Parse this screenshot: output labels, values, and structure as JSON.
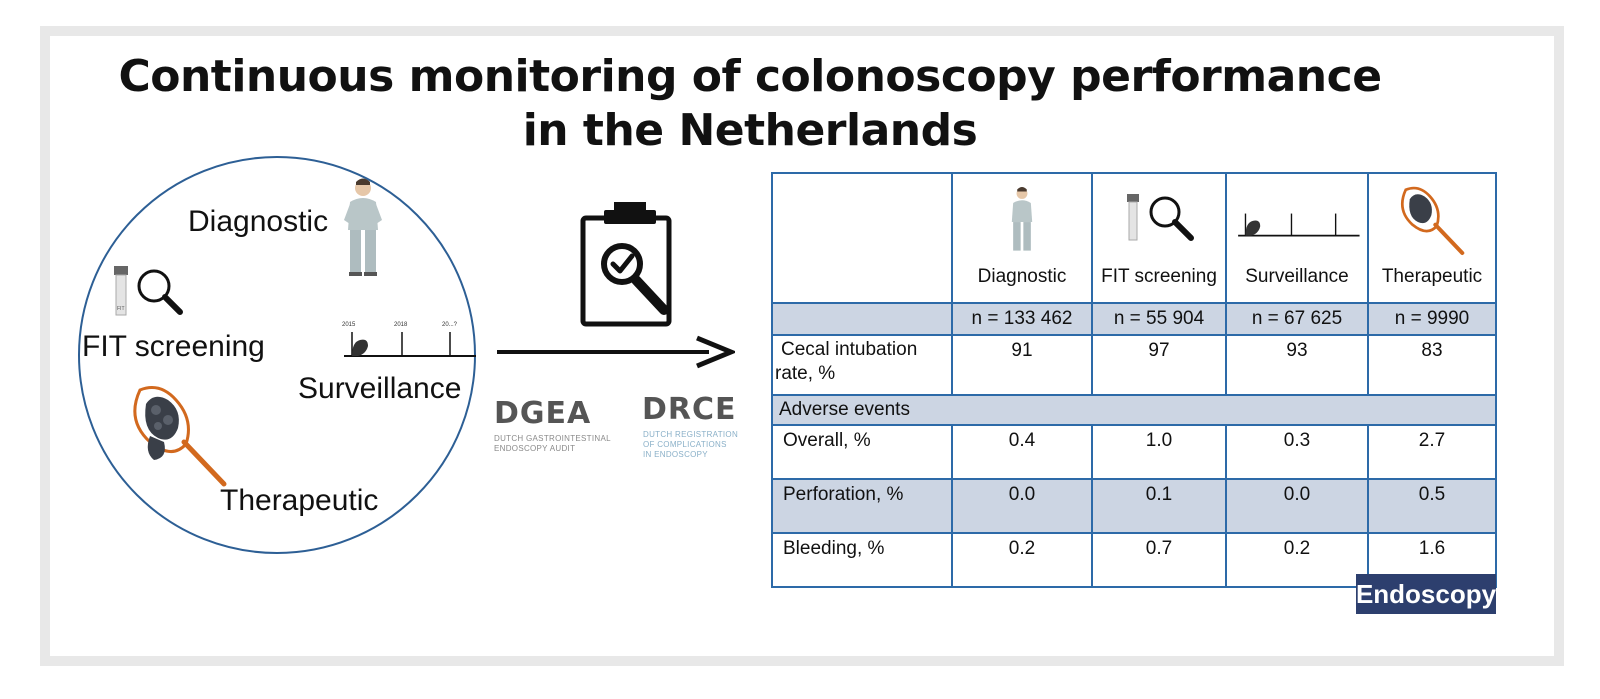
{
  "title": "Continuous monitoring of colonoscopy performance in the Netherlands",
  "circle": {
    "labels": {
      "diagnostic": "Diagnostic",
      "fit": "FIT screening",
      "surveillance": "Surveillance",
      "therapeutic": "Therapeutic"
    },
    "timeline_ticks": [
      "2015",
      "2018",
      "20...?"
    ],
    "fit_tube_label": "FIT"
  },
  "registries": {
    "dgea": {
      "name": "DGEA",
      "subtitle_lines": [
        "DUTCH GASTROINTESTINAL",
        "ENDOSCOPY AUDIT"
      ]
    },
    "drce": {
      "name": "DRCE",
      "subtitle_lines": [
        "DUTCH REGISTRATION",
        "OF COMPLICATIONS",
        "IN ENDOSCOPY"
      ]
    }
  },
  "table": {
    "columns": [
      "Diagnostic",
      "FIT screening",
      "Surveillance",
      "Therapeutic"
    ],
    "n_values": [
      "n = 133 462",
      "n = 55 904",
      "n = 67 625",
      "n = 9990"
    ],
    "cecal": {
      "label_line1": "Cecal intubation",
      "label_line2": "rate, %",
      "values": [
        "91",
        "97",
        "93",
        "83"
      ]
    },
    "section_label": "Adverse events",
    "overall": {
      "label": "Overall, %",
      "values": [
        "0.4",
        "1.0",
        "0.3",
        "2.7"
      ]
    },
    "perforation": {
      "label": "Perforation, %",
      "values": [
        "0.0",
        "0.1",
        "0.0",
        "0.5"
      ]
    },
    "bleeding": {
      "label": "Bleeding, %",
      "values": [
        "0.2",
        "0.7",
        "0.2",
        "1.6"
      ]
    }
  },
  "brand": "Endoscopy",
  "colors": {
    "circle_border": "#2d5f95",
    "table_border": "#2d6aa8",
    "shade": "#ccd5e3",
    "brand_bg": "#2d3f6e",
    "snare": "#d2691e"
  },
  "icons": [
    "patient-icon",
    "fit-tube-icon",
    "magnifier-icon",
    "timeline-icon",
    "polyp-snare-icon",
    "clipboard-check-icon",
    "arrow-right-icon"
  ]
}
